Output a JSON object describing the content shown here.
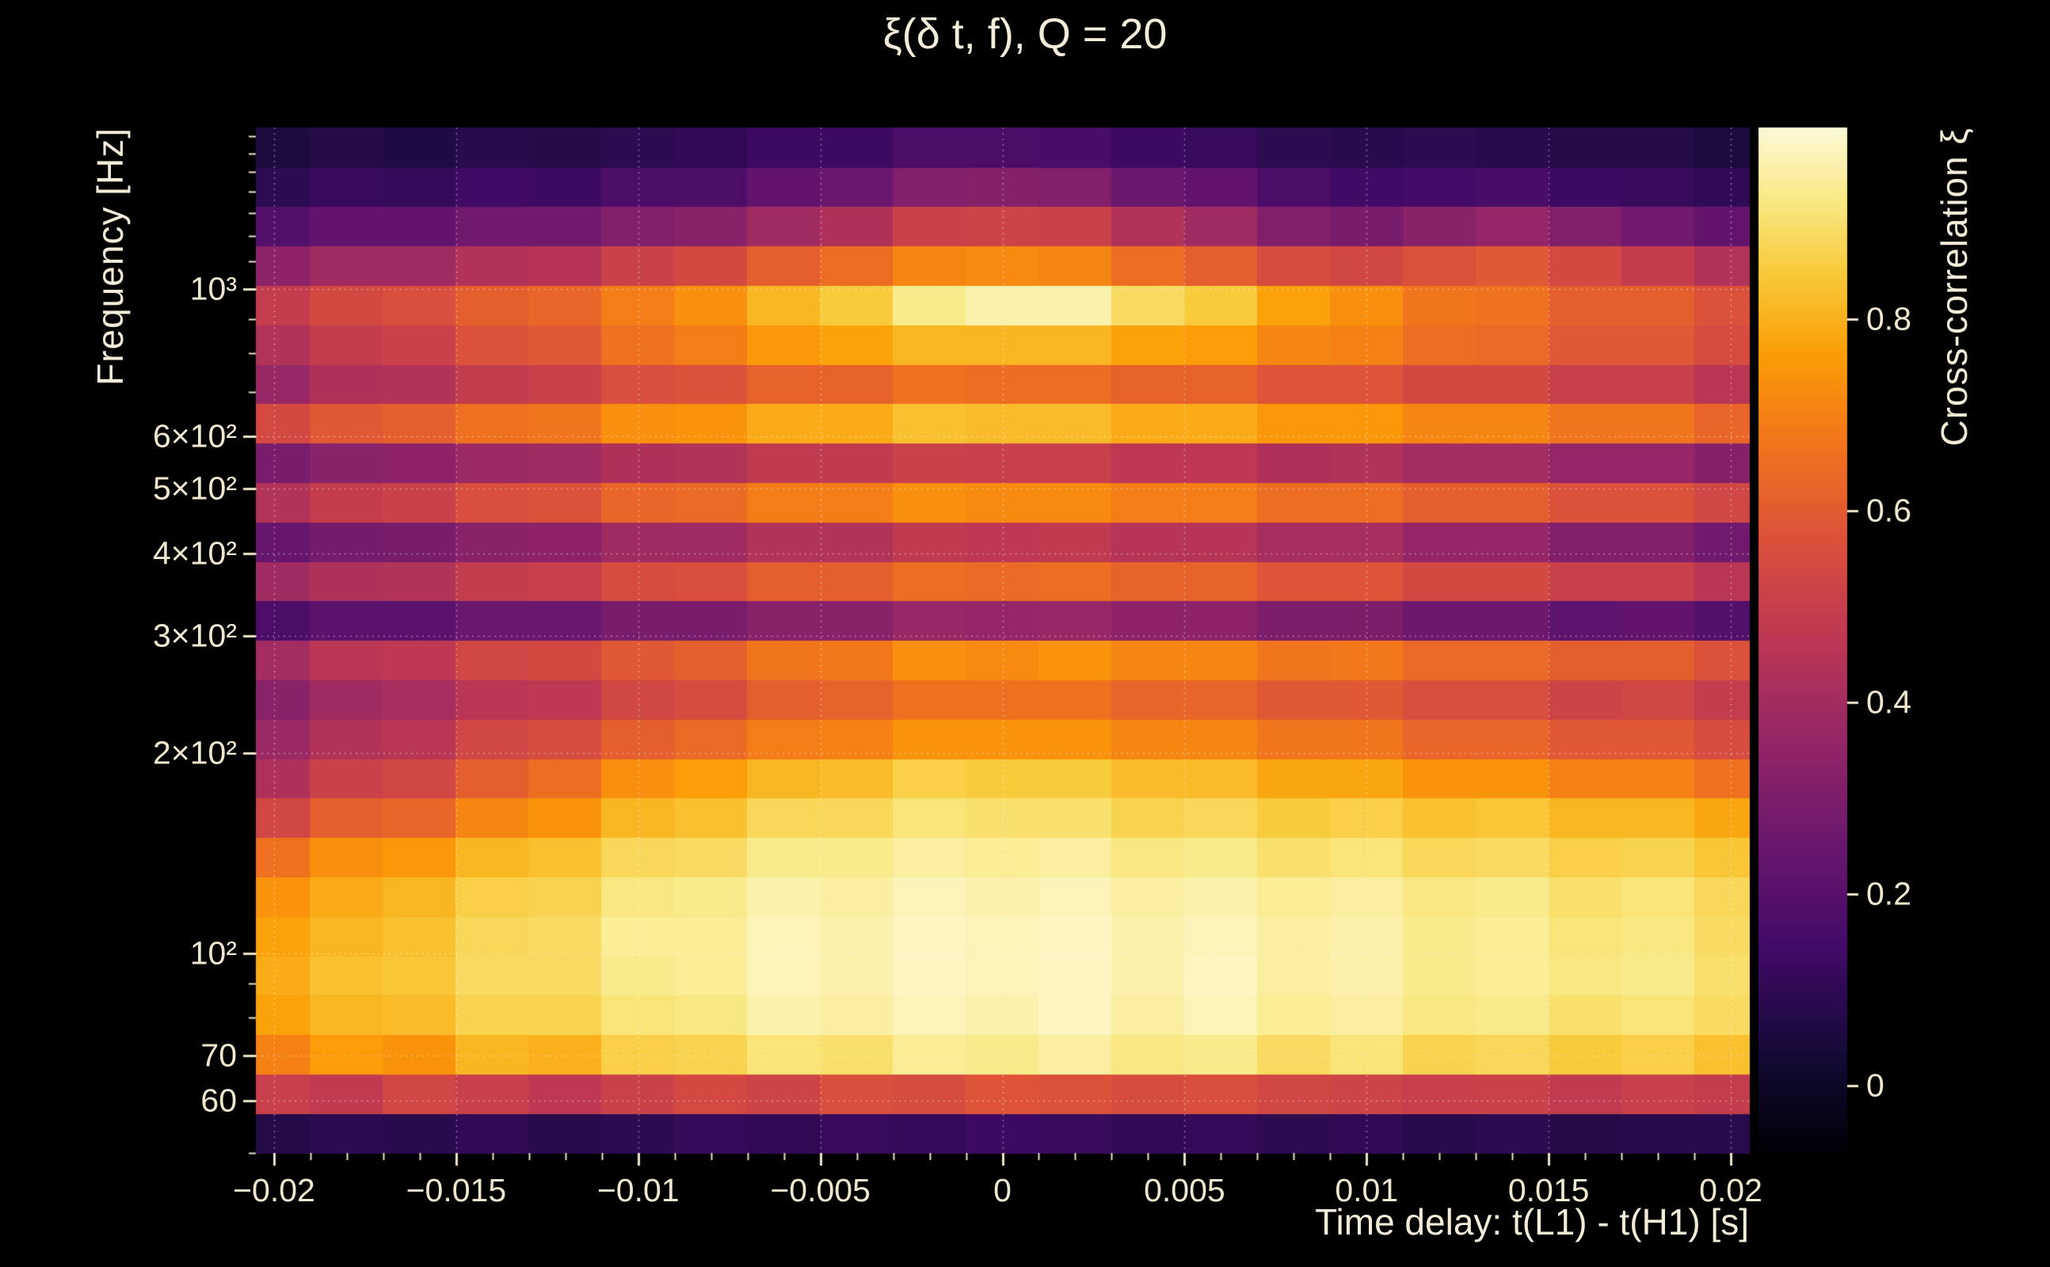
{
  "figure": {
    "title": "ξ(δ t, f), Q = 20",
    "background_color": "#000000",
    "text_color": "#f3ecd8",
    "tick_color": "#ece3c8",
    "grid_color": "rgba(255,255,255,0.4)"
  },
  "chart_data": {
    "type": "heatmap",
    "title": "ξ(δ t, f), Q = 20",
    "xlabel": "Time delay: t(L1) - t(H1) [s]",
    "ylabel": "Frequency [Hz]",
    "colorbar_label": "Cross-correlation ξ",
    "x_axis": {
      "scale": "linear",
      "min": -0.0205,
      "max": 0.0205,
      "major_ticks": [
        -0.02,
        -0.015,
        -0.01,
        -0.005,
        0,
        0.005,
        0.01,
        0.015,
        0.02
      ],
      "major_tick_labels": [
        "−0.02",
        "−0.015",
        "−0.01",
        "−0.005",
        "0",
        "0.005",
        "0.01",
        "0.015",
        "0.02"
      ],
      "minor_tick_step": 0.001
    },
    "y_axis": {
      "scale": "log",
      "min": 50,
      "max": 1750,
      "major_ticks": [
        1000,
        600,
        500,
        400,
        300,
        200,
        100,
        70,
        60
      ],
      "major_tick_labels": [
        "10³",
        "6×10²",
        "5×10²",
        "4×10²",
        "3×10²",
        "2×10²",
        "10²",
        "70",
        "60"
      ],
      "minor_ticks": [
        50,
        80,
        90,
        700,
        800,
        900,
        1100,
        1200,
        1300,
        1400,
        1500,
        1600,
        1700
      ],
      "gridline_ticks": [
        1000,
        600,
        500,
        400,
        300,
        200,
        100,
        70,
        60
      ]
    },
    "colorbar": {
      "min": -0.07,
      "max": 1.0,
      "ticks": [
        0,
        0.2,
        0.4,
        0.6,
        0.8
      ],
      "tick_labels": [
        "0",
        "0.2",
        "0.4",
        "0.6",
        "0.8"
      ]
    },
    "colormap": {
      "name": "inferno-like",
      "stops": [
        [
          0.0,
          "#000004"
        ],
        [
          0.1,
          "#160b39"
        ],
        [
          0.2,
          "#420a68"
        ],
        [
          0.3,
          "#6a176e"
        ],
        [
          0.4,
          "#932667"
        ],
        [
          0.5,
          "#bc3754"
        ],
        [
          0.6,
          "#dd513a"
        ],
        [
          0.7,
          "#f37819"
        ],
        [
          0.78,
          "#fb9e07"
        ],
        [
          0.86,
          "#f8cb3c"
        ],
        [
          0.93,
          "#f9ea86"
        ],
        [
          1.0,
          "#fdf9d8"
        ]
      ]
    },
    "grid": {
      "style": "dotted",
      "on": true
    },
    "x_bin_centers": [
      -0.02,
      -0.018,
      -0.016,
      -0.014,
      -0.012,
      -0.01,
      -0.008,
      -0.006,
      -0.004,
      -0.002,
      0,
      0.002,
      0.004,
      0.006,
      0.008,
      0.01,
      0.012,
      0.014,
      0.016,
      0.018,
      0.02
    ],
    "freq_bins": {
      "f_min": 50,
      "f_max": 1750,
      "rows": 26,
      "spacing": "log"
    },
    "values": [
      [
        0.07,
        0.09,
        0.08,
        0.1,
        0.08,
        0.09,
        0.11,
        0.1,
        0.12,
        0.11,
        0.13,
        0.12,
        0.1,
        0.11,
        0.09,
        0.1,
        0.08,
        0.09,
        0.07,
        0.08,
        0.08
      ],
      [
        0.5,
        0.48,
        0.53,
        0.5,
        0.47,
        0.51,
        0.54,
        0.52,
        0.56,
        0.55,
        0.58,
        0.57,
        0.55,
        0.56,
        0.53,
        0.52,
        0.5,
        0.51,
        0.48,
        0.5,
        0.49
      ],
      [
        0.7,
        0.76,
        0.74,
        0.81,
        0.8,
        0.86,
        0.87,
        0.91,
        0.9,
        0.94,
        0.93,
        0.95,
        0.92,
        0.93,
        0.89,
        0.91,
        0.87,
        0.88,
        0.85,
        0.86,
        0.83
      ],
      [
        0.77,
        0.81,
        0.82,
        0.87,
        0.87,
        0.91,
        0.92,
        0.96,
        0.95,
        0.97,
        0.96,
        0.98,
        0.95,
        0.97,
        0.94,
        0.95,
        0.92,
        0.93,
        0.9,
        0.91,
        0.89
      ],
      [
        0.79,
        0.83,
        0.84,
        0.89,
        0.89,
        0.93,
        0.94,
        0.97,
        0.96,
        0.98,
        0.97,
        0.98,
        0.96,
        0.98,
        0.95,
        0.96,
        0.93,
        0.94,
        0.92,
        0.93,
        0.9
      ],
      [
        0.77,
        0.81,
        0.83,
        0.88,
        0.89,
        0.94,
        0.94,
        0.97,
        0.96,
        0.98,
        0.97,
        0.98,
        0.96,
        0.97,
        0.95,
        0.96,
        0.93,
        0.94,
        0.91,
        0.92,
        0.89
      ],
      [
        0.74,
        0.79,
        0.81,
        0.86,
        0.87,
        0.92,
        0.93,
        0.96,
        0.95,
        0.97,
        0.96,
        0.97,
        0.95,
        0.96,
        0.94,
        0.95,
        0.92,
        0.93,
        0.9,
        0.91,
        0.88
      ],
      [
        0.66,
        0.73,
        0.75,
        0.81,
        0.83,
        0.88,
        0.89,
        0.93,
        0.93,
        0.95,
        0.94,
        0.95,
        0.92,
        0.93,
        0.9,
        0.91,
        0.88,
        0.89,
        0.86,
        0.87,
        0.84
      ],
      [
        0.53,
        0.61,
        0.63,
        0.71,
        0.74,
        0.81,
        0.83,
        0.88,
        0.88,
        0.91,
        0.9,
        0.9,
        0.87,
        0.88,
        0.85,
        0.86,
        0.83,
        0.84,
        0.81,
        0.81,
        0.78
      ],
      [
        0.43,
        0.51,
        0.53,
        0.61,
        0.65,
        0.73,
        0.76,
        0.81,
        0.82,
        0.86,
        0.85,
        0.85,
        0.82,
        0.82,
        0.78,
        0.78,
        0.74,
        0.74,
        0.7,
        0.7,
        0.66
      ],
      [
        0.38,
        0.44,
        0.46,
        0.53,
        0.55,
        0.61,
        0.64,
        0.69,
        0.7,
        0.74,
        0.74,
        0.74,
        0.71,
        0.71,
        0.67,
        0.67,
        0.63,
        0.63,
        0.59,
        0.59,
        0.55
      ],
      [
        0.33,
        0.39,
        0.41,
        0.46,
        0.47,
        0.53,
        0.55,
        0.61,
        0.62,
        0.66,
        0.66,
        0.66,
        0.63,
        0.63,
        0.59,
        0.59,
        0.56,
        0.56,
        0.52,
        0.53,
        0.49
      ],
      [
        0.4,
        0.46,
        0.47,
        0.53,
        0.54,
        0.59,
        0.61,
        0.67,
        0.68,
        0.73,
        0.72,
        0.74,
        0.71,
        0.71,
        0.67,
        0.68,
        0.64,
        0.64,
        0.61,
        0.61,
        0.57
      ],
      [
        0.17,
        0.21,
        0.21,
        0.25,
        0.25,
        0.29,
        0.29,
        0.33,
        0.33,
        0.37,
        0.36,
        0.37,
        0.34,
        0.34,
        0.3,
        0.3,
        0.26,
        0.26,
        0.22,
        0.23,
        0.19
      ],
      [
        0.39,
        0.43,
        0.44,
        0.49,
        0.5,
        0.55,
        0.56,
        0.61,
        0.61,
        0.65,
        0.64,
        0.65,
        0.62,
        0.62,
        0.58,
        0.58,
        0.54,
        0.54,
        0.5,
        0.5,
        0.46
      ],
      [
        0.24,
        0.28,
        0.29,
        0.33,
        0.34,
        0.39,
        0.39,
        0.44,
        0.44,
        0.48,
        0.47,
        0.48,
        0.45,
        0.45,
        0.41,
        0.41,
        0.36,
        0.36,
        0.31,
        0.31,
        0.27
      ],
      [
        0.44,
        0.49,
        0.51,
        0.56,
        0.57,
        0.63,
        0.64,
        0.69,
        0.69,
        0.73,
        0.72,
        0.72,
        0.69,
        0.69,
        0.65,
        0.65,
        0.61,
        0.61,
        0.57,
        0.57,
        0.53
      ],
      [
        0.29,
        0.33,
        0.34,
        0.38,
        0.39,
        0.43,
        0.44,
        0.48,
        0.48,
        0.51,
        0.5,
        0.5,
        0.47,
        0.47,
        0.43,
        0.44,
        0.4,
        0.4,
        0.36,
        0.36,
        0.32
      ],
      [
        0.54,
        0.59,
        0.61,
        0.66,
        0.67,
        0.73,
        0.74,
        0.79,
        0.79,
        0.83,
        0.82,
        0.82,
        0.79,
        0.79,
        0.75,
        0.75,
        0.71,
        0.71,
        0.67,
        0.67,
        0.63
      ],
      [
        0.37,
        0.43,
        0.44,
        0.49,
        0.51,
        0.56,
        0.57,
        0.62,
        0.62,
        0.66,
        0.65,
        0.65,
        0.62,
        0.62,
        0.58,
        0.58,
        0.54,
        0.54,
        0.5,
        0.5,
        0.46
      ],
      [
        0.44,
        0.49,
        0.51,
        0.57,
        0.59,
        0.66,
        0.69,
        0.75,
        0.77,
        0.81,
        0.81,
        0.81,
        0.77,
        0.76,
        0.71,
        0.7,
        0.65,
        0.64,
        0.59,
        0.59,
        0.55
      ],
      [
        0.49,
        0.54,
        0.56,
        0.61,
        0.63,
        0.69,
        0.73,
        0.81,
        0.85,
        0.93,
        0.96,
        0.96,
        0.89,
        0.85,
        0.77,
        0.73,
        0.67,
        0.66,
        0.61,
        0.61,
        0.57
      ],
      [
        0.34,
        0.39,
        0.39,
        0.44,
        0.45,
        0.51,
        0.54,
        0.61,
        0.65,
        0.71,
        0.72,
        0.71,
        0.65,
        0.61,
        0.55,
        0.53,
        0.57,
        0.59,
        0.54,
        0.49,
        0.44
      ],
      [
        0.19,
        0.23,
        0.23,
        0.27,
        0.27,
        0.31,
        0.33,
        0.39,
        0.43,
        0.51,
        0.52,
        0.51,
        0.44,
        0.39,
        0.31,
        0.29,
        0.33,
        0.36,
        0.31,
        0.27,
        0.23
      ],
      [
        0.09,
        0.12,
        0.11,
        0.14,
        0.13,
        0.17,
        0.17,
        0.23,
        0.25,
        0.31,
        0.32,
        0.31,
        0.25,
        0.23,
        0.17,
        0.14,
        0.15,
        0.16,
        0.13,
        0.12,
        0.1
      ],
      [
        0.05,
        0.07,
        0.06,
        0.08,
        0.07,
        0.09,
        0.1,
        0.13,
        0.13,
        0.17,
        0.17,
        0.16,
        0.13,
        0.12,
        0.09,
        0.08,
        0.09,
        0.08,
        0.07,
        0.07,
        0.05
      ]
    ]
  }
}
